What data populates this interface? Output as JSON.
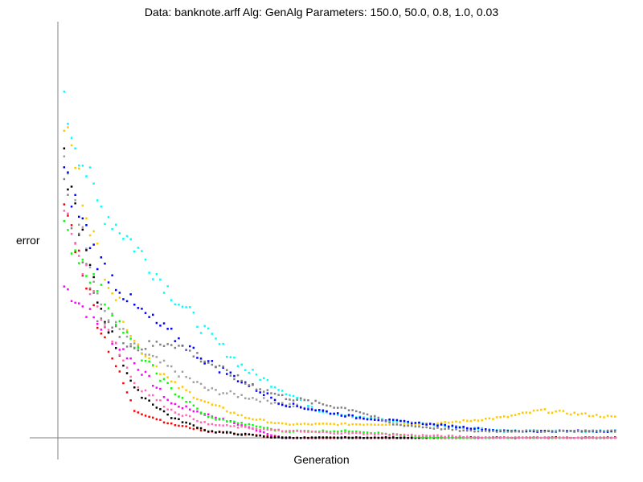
{
  "chart_data": {
    "type": "scatter",
    "title": "Data: banknote.arff    Alg: GenAlg    Parameters: 150.0, 50.0, 0.8, 1.0, 0.03",
    "xlabel": "Generation",
    "ylabel": "error",
    "xlim": [
      0,
      150
    ],
    "ylim": [
      0,
      0.6
    ],
    "grid": false,
    "legend": "none",
    "axis_color": "#808080",
    "series": [
      {
        "color": "#ff00ff",
        "x": [
          1,
          30,
          60,
          90,
          120,
          150
        ],
        "y": [
          0.22,
          0.05,
          0.0,
          0.0,
          0.0,
          0.0
        ]
      },
      {
        "color": "#a0a0a0",
        "x": [
          1,
          10,
          20,
          30,
          40,
          50,
          60,
          70,
          80,
          100,
          120,
          150
        ],
        "y": [
          0.43,
          0.2,
          0.13,
          0.1,
          0.07,
          0.06,
          0.05,
          0.04,
          0.03,
          0.02,
          0.01,
          0.01
        ]
      },
      {
        "color": "#00ffff",
        "x": [
          1,
          10,
          20,
          30,
          40,
          50,
          60,
          70,
          80,
          100,
          120,
          150
        ],
        "y": [
          0.48,
          0.34,
          0.28,
          0.21,
          0.15,
          0.1,
          0.07,
          0.04,
          0.03,
          0.02,
          0.01,
          0.01
        ]
      },
      {
        "color": "#ffc800",
        "x": [
          1,
          10,
          20,
          30,
          40,
          50,
          60,
          70,
          80,
          100,
          120,
          130,
          150
        ],
        "y": [
          0.46,
          0.27,
          0.14,
          0.08,
          0.05,
          0.03,
          0.02,
          0.02,
          0.02,
          0.02,
          0.03,
          0.04,
          0.03
        ]
      },
      {
        "color": "#ff0000",
        "x": [
          1,
          10,
          20,
          30,
          40,
          60,
          90,
          120,
          150
        ],
        "y": [
          0.34,
          0.17,
          0.04,
          0.02,
          0.01,
          0.0,
          0.0,
          0.0,
          0.0
        ]
      },
      {
        "color": "#000000",
        "x": [
          1,
          10,
          20,
          30,
          40,
          60,
          90,
          120,
          150
        ],
        "y": [
          0.4,
          0.2,
          0.07,
          0.03,
          0.01,
          0.0,
          0.0,
          0.0,
          0.0
        ]
      },
      {
        "color": "#00ff00",
        "x": [
          1,
          10,
          20,
          30,
          40,
          50,
          60,
          70,
          80,
          100,
          120,
          150
        ],
        "y": [
          0.3,
          0.22,
          0.13,
          0.07,
          0.03,
          0.02,
          0.01,
          0.01,
          0.01,
          0.0,
          0.0,
          0.0
        ]
      },
      {
        "color": "#0000ff",
        "x": [
          1,
          10,
          20,
          30,
          40,
          50,
          60,
          70,
          80,
          90,
          100,
          110,
          120,
          130,
          150
        ],
        "y": [
          0.38,
          0.26,
          0.19,
          0.15,
          0.11,
          0.08,
          0.05,
          0.04,
          0.03,
          0.025,
          0.02,
          0.015,
          0.01,
          0.01,
          0.01
        ]
      },
      {
        "color": "#808080",
        "x": [
          1,
          10,
          20,
          30,
          40,
          50,
          60,
          70,
          80,
          90,
          100,
          110,
          120,
          130,
          150
        ],
        "y": [
          0.36,
          0.18,
          0.13,
          0.14,
          0.11,
          0.08,
          0.06,
          0.05,
          0.04,
          0.02,
          0.015,
          0.01,
          0.01,
          0.01,
          0.01
        ]
      },
      {
        "color": "#ff69b4",
        "x": [
          1,
          10,
          20,
          30,
          40,
          60,
          90,
          120,
          150
        ],
        "y": [
          0.33,
          0.19,
          0.08,
          0.04,
          0.02,
          0.01,
          0.005,
          0.0,
          0.0
        ]
      }
    ]
  }
}
